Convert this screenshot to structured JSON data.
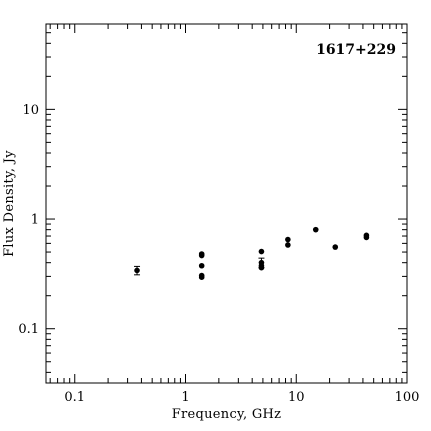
{
  "chart_data": {
    "type": "scatter",
    "title": "",
    "annotation": "1617+229",
    "xlabel": "Frequency, GHz",
    "ylabel": "Flux Density, Jy",
    "xscale": "log",
    "yscale": "log",
    "xlim": [
      0.055,
      100
    ],
    "ylim": [
      0.032,
      60
    ],
    "grid": false,
    "legend": "none",
    "x_tick_labels": [
      {
        "value": 0.1,
        "label": "0.1"
      },
      {
        "value": 1,
        "label": "1"
      },
      {
        "value": 10,
        "label": "10"
      },
      {
        "value": 100,
        "label": "100"
      }
    ],
    "y_tick_labels": [
      {
        "value": 0.1,
        "label": "0.1"
      },
      {
        "value": 1,
        "label": "1"
      },
      {
        "value": 10,
        "label": "10"
      }
    ],
    "points": [
      {
        "x": 0.365,
        "y": 0.34,
        "err": 0.03
      },
      {
        "x": 1.4,
        "y": 0.48
      },
      {
        "x": 1.4,
        "y": 0.465
      },
      {
        "x": 1.4,
        "y": 0.375
      },
      {
        "x": 1.4,
        "y": 0.305
      },
      {
        "x": 1.4,
        "y": 0.295
      },
      {
        "x": 4.85,
        "y": 0.505
      },
      {
        "x": 4.85,
        "y": 0.4,
        "err": 0.04
      },
      {
        "x": 4.85,
        "y": 0.375
      },
      {
        "x": 4.85,
        "y": 0.36
      },
      {
        "x": 8.4,
        "y": 0.65
      },
      {
        "x": 8.4,
        "y": 0.58
      },
      {
        "x": 15,
        "y": 0.8
      },
      {
        "x": 22.5,
        "y": 0.555
      },
      {
        "x": 43,
        "y": 0.71
      },
      {
        "x": 43,
        "y": 0.68
      }
    ]
  }
}
